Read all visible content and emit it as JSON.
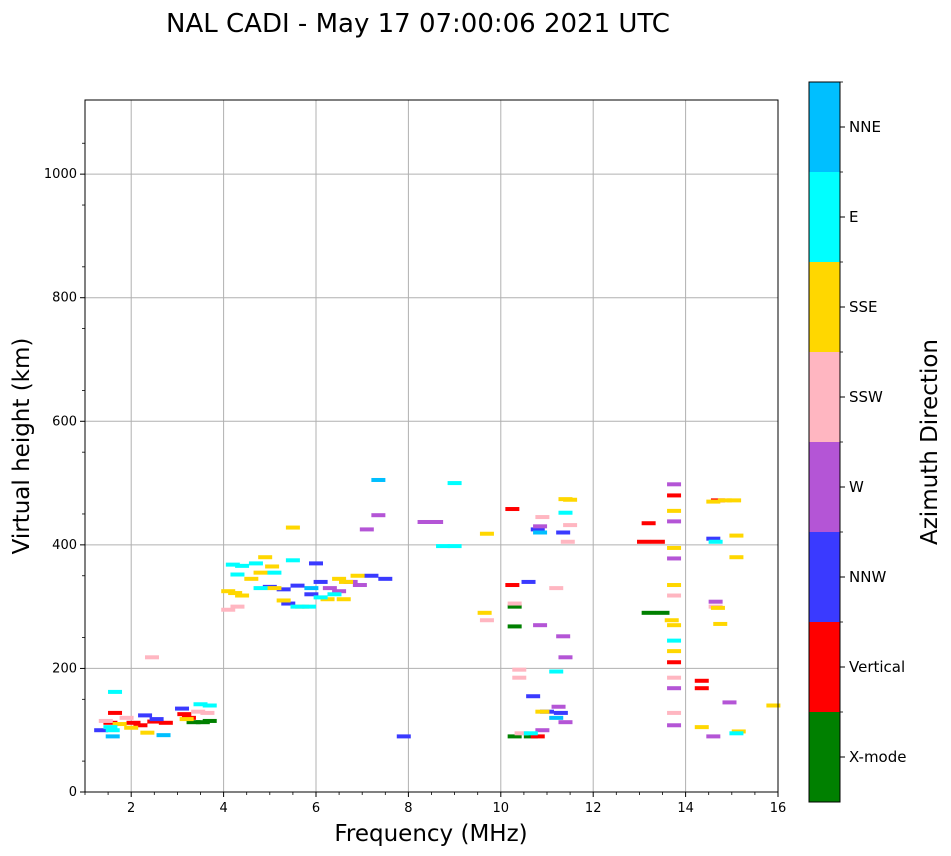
{
  "chart_data": {
    "type": "scatter",
    "title": "NAL CADI - May 17 07:00:06 2021 UTC",
    "xlabel": "Frequency (MHz)",
    "ylabel": "Virtual height (km)",
    "xlim": [
      1,
      16
    ],
    "ylim": [
      0,
      1120
    ],
    "xticks": [
      2,
      4,
      6,
      8,
      10,
      12,
      14,
      16
    ],
    "xtick_labels": [
      "2",
      "4",
      "6",
      "8",
      "10",
      "12",
      "14",
      "16"
    ],
    "yticks": [
      0,
      200,
      400,
      600,
      800,
      1000
    ],
    "ytick_labels": [
      "0",
      "200",
      "400",
      "600",
      "800",
      "1000"
    ],
    "grid": true,
    "colorbar": {
      "label": "Azimuth Direction",
      "categories": [
        "X-mode",
        "Vertical",
        "NNW",
        "W",
        "SSW",
        "SSE",
        "E",
        "NNE"
      ],
      "colors": [
        "#008000",
        "#ff0000",
        "#3a3aff",
        "#b455d6",
        "#ffb6c1",
        "#ffd700",
        "#00ffff",
        "#00bfff"
      ]
    },
    "series": [
      {
        "name": "X-mode",
        "points": [
          [
            3.35,
            113
          ],
          [
            3.55,
            113
          ],
          [
            3.7,
            115
          ],
          [
            10.3,
            268
          ],
          [
            10.3,
            90
          ],
          [
            10.3,
            300
          ],
          [
            10.65,
            90
          ],
          [
            13.2,
            290
          ],
          [
            13.5,
            290
          ]
        ]
      },
      {
        "name": "Vertical",
        "points": [
          [
            1.65,
            128
          ],
          [
            1.55,
            112
          ],
          [
            2.05,
            112
          ],
          [
            2.2,
            108
          ],
          [
            2.5,
            114
          ],
          [
            2.75,
            112
          ],
          [
            3.15,
            126
          ],
          [
            3.25,
            120
          ],
          [
            10.25,
            458
          ],
          [
            10.25,
            335
          ],
          [
            10.8,
            90
          ],
          [
            13.1,
            405
          ],
          [
            13.4,
            405
          ],
          [
            13.75,
            480
          ],
          [
            13.75,
            210
          ],
          [
            14.35,
            180
          ],
          [
            14.35,
            168
          ],
          [
            14.7,
            472
          ],
          [
            13.2,
            435
          ]
        ]
      },
      {
        "name": "NNW",
        "points": [
          [
            1.35,
            100
          ],
          [
            2.3,
            124
          ],
          [
            2.55,
            118
          ],
          [
            3.1,
            135
          ],
          [
            5.0,
            332
          ],
          [
            5.3,
            328
          ],
          [
            5.6,
            334
          ],
          [
            5.9,
            320
          ],
          [
            6.1,
            340
          ],
          [
            6.0,
            370
          ],
          [
            10.8,
            425
          ],
          [
            10.6,
            340
          ],
          [
            10.7,
            155
          ],
          [
            11.0,
            130
          ],
          [
            11.3,
            128
          ],
          [
            11.35,
            420
          ],
          [
            7.5,
            345
          ],
          [
            7.2,
            350
          ],
          [
            7.9,
            90
          ],
          [
            5.4,
            305
          ],
          [
            14.6,
            410
          ]
        ]
      },
      {
        "name": "W",
        "points": [
          [
            6.3,
            330
          ],
          [
            6.5,
            325
          ],
          [
            6.75,
            340
          ],
          [
            6.95,
            335
          ],
          [
            7.1,
            425
          ],
          [
            7.35,
            448
          ],
          [
            8.35,
            437
          ],
          [
            8.6,
            437
          ],
          [
            10.85,
            430
          ],
          [
            10.85,
            270
          ],
          [
            11.25,
            138
          ],
          [
            11.35,
            252
          ],
          [
            11.4,
            218
          ],
          [
            11.4,
            113
          ],
          [
            13.75,
            498
          ],
          [
            13.75,
            438
          ],
          [
            13.75,
            378
          ],
          [
            13.75,
            168
          ],
          [
            13.75,
            108
          ],
          [
            14.65,
            308
          ],
          [
            14.6,
            90
          ],
          [
            14.95,
            145
          ],
          [
            10.9,
            100
          ]
        ]
      },
      {
        "name": "SSW",
        "points": [
          [
            1.45,
            115
          ],
          [
            1.9,
            120
          ],
          [
            3.45,
            130
          ],
          [
            3.65,
            128
          ],
          [
            4.1,
            295
          ],
          [
            4.3,
            300
          ],
          [
            2.45,
            218
          ],
          [
            9.7,
            278
          ],
          [
            10.3,
            305
          ],
          [
            10.4,
            185
          ],
          [
            10.4,
            198
          ],
          [
            10.9,
            445
          ],
          [
            11.2,
            330
          ],
          [
            11.5,
            432
          ],
          [
            11.45,
            405
          ],
          [
            13.75,
            318
          ],
          [
            13.75,
            185
          ],
          [
            13.75,
            128
          ],
          [
            14.65,
            300
          ],
          [
            10.45,
            95
          ]
        ]
      },
      {
        "name": "SSE",
        "points": [
          [
            1.75,
            110
          ],
          [
            2.0,
            104
          ],
          [
            2.35,
            96
          ],
          [
            3.2,
            118
          ],
          [
            4.1,
            325
          ],
          [
            4.25,
            322
          ],
          [
            4.4,
            318
          ],
          [
            4.6,
            345
          ],
          [
            4.8,
            355
          ],
          [
            4.9,
            380
          ],
          [
            5.05,
            365
          ],
          [
            5.1,
            330
          ],
          [
            5.3,
            310
          ],
          [
            5.5,
            428
          ],
          [
            5.7,
            300
          ],
          [
            6.25,
            312
          ],
          [
            6.6,
            312
          ],
          [
            6.5,
            345
          ],
          [
            6.65,
            340
          ],
          [
            6.9,
            350
          ],
          [
            9.65,
            290
          ],
          [
            9.7,
            418
          ],
          [
            11.4,
            474
          ],
          [
            11.5,
            473
          ],
          [
            10.9,
            130
          ],
          [
            13.75,
            395
          ],
          [
            13.75,
            335
          ],
          [
            13.75,
            270
          ],
          [
            13.75,
            228
          ],
          [
            13.7,
            278
          ],
          [
            13.75,
            455
          ],
          [
            14.35,
            105
          ],
          [
            14.6,
            470
          ],
          [
            14.7,
            298
          ],
          [
            14.75,
            272
          ],
          [
            14.85,
            472
          ],
          [
            15.05,
            472
          ],
          [
            15.1,
            415
          ],
          [
            15.1,
            380
          ],
          [
            15.15,
            98
          ],
          [
            15.9,
            140
          ]
        ]
      },
      {
        "name": "E",
        "points": [
          [
            1.55,
            105
          ],
          [
            1.6,
            100
          ],
          [
            1.65,
            162
          ],
          [
            3.5,
            142
          ],
          [
            3.7,
            140
          ],
          [
            4.2,
            368
          ],
          [
            4.4,
            366
          ],
          [
            4.3,
            352
          ],
          [
            4.7,
            370
          ],
          [
            4.8,
            330
          ],
          [
            5.1,
            355
          ],
          [
            5.5,
            375
          ],
          [
            5.6,
            300
          ],
          [
            5.85,
            300
          ],
          [
            6.1,
            315
          ],
          [
            6.4,
            320
          ],
          [
            9.0,
            500
          ],
          [
            8.75,
            398
          ],
          [
            9.0,
            398
          ],
          [
            10.65,
            95
          ],
          [
            11.2,
            195
          ],
          [
            11.4,
            452
          ],
          [
            13.75,
            245
          ],
          [
            14.65,
            405
          ],
          [
            15.1,
            95
          ]
        ]
      },
      {
        "name": "NNE",
        "points": [
          [
            1.6,
            90
          ],
          [
            2.7,
            92
          ],
          [
            7.35,
            505
          ],
          [
            10.85,
            420
          ],
          [
            11.2,
            120
          ],
          [
            5.9,
            330
          ]
        ]
      }
    ]
  }
}
